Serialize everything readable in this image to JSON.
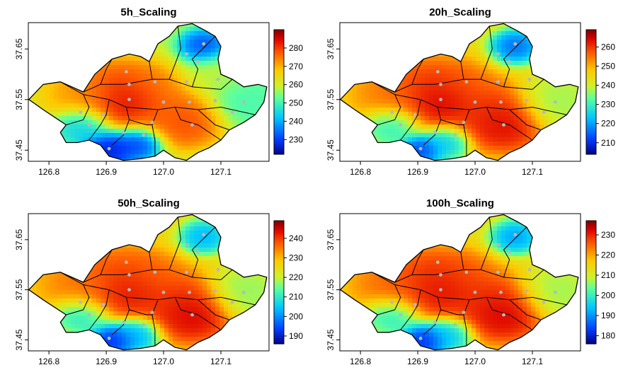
{
  "chart_data": [
    {
      "type": "heatmap",
      "title": "5h_Scaling",
      "x_ticks": [
        126.8,
        126.9,
        127.0,
        127.1
      ],
      "y_ticks": [
        37.45,
        37.55,
        37.65
      ],
      "xlim": [
        126.764,
        127.184
      ],
      "ylim": [
        37.428,
        37.702
      ],
      "colorbar": {
        "min": 222,
        "max": 290,
        "ticks": [
          230,
          240,
          250,
          260,
          270,
          280
        ]
      },
      "hotspots": [
        {
          "lon": 126.94,
          "lat": 37.545,
          "value": 289,
          "spread": 0.03
        },
        {
          "lon": 126.92,
          "lat": 37.57,
          "value": 284,
          "spread": 0.04
        },
        {
          "lon": 127.04,
          "lat": 37.505,
          "value": 282,
          "spread": 0.035
        },
        {
          "lon": 127.0,
          "lat": 37.53,
          "value": 278,
          "spread": 0.04
        },
        {
          "lon": 126.97,
          "lat": 37.58,
          "value": 276,
          "spread": 0.03
        },
        {
          "lon": 126.86,
          "lat": 37.56,
          "value": 274,
          "spread": 0.04
        },
        {
          "lon": 127.07,
          "lat": 37.655,
          "value": 228,
          "spread": 0.022
        },
        {
          "lon": 126.905,
          "lat": 37.45,
          "value": 222,
          "spread": 0.025
        },
        {
          "lon": 126.96,
          "lat": 37.465,
          "value": 226,
          "spread": 0.022
        },
        {
          "lon": 126.855,
          "lat": 37.5,
          "value": 240,
          "spread": 0.025
        },
        {
          "lon": 127.14,
          "lat": 37.545,
          "value": 250,
          "spread": 0.035
        },
        {
          "lon": 127.09,
          "lat": 37.6,
          "value": 258,
          "spread": 0.03
        }
      ],
      "base_value": 258
    },
    {
      "type": "heatmap",
      "title": "20h_Scaling",
      "x_ticks": [
        126.8,
        126.9,
        127.0,
        127.1
      ],
      "y_ticks": [
        37.45,
        37.55,
        37.65
      ],
      "xlim": [
        126.764,
        127.184
      ],
      "ylim": [
        37.428,
        37.702
      ],
      "colorbar": {
        "min": 204,
        "max": 269,
        "ticks": [
          210,
          220,
          230,
          240,
          250,
          260
        ]
      },
      "hotspots": [
        {
          "lon": 126.94,
          "lat": 37.545,
          "value": 268,
          "spread": 0.03
        },
        {
          "lon": 126.92,
          "lat": 37.57,
          "value": 264,
          "spread": 0.04
        },
        {
          "lon": 127.05,
          "lat": 37.5,
          "value": 267,
          "spread": 0.035
        },
        {
          "lon": 127.02,
          "lat": 37.53,
          "value": 262,
          "spread": 0.04
        },
        {
          "lon": 126.97,
          "lat": 37.58,
          "value": 258,
          "spread": 0.03
        },
        {
          "lon": 126.86,
          "lat": 37.56,
          "value": 256,
          "spread": 0.04
        },
        {
          "lon": 127.07,
          "lat": 37.655,
          "value": 212,
          "spread": 0.022
        },
        {
          "lon": 126.905,
          "lat": 37.45,
          "value": 208,
          "spread": 0.02
        },
        {
          "lon": 126.95,
          "lat": 37.465,
          "value": 222,
          "spread": 0.022
        },
        {
          "lon": 126.855,
          "lat": 37.5,
          "value": 226,
          "spread": 0.025
        },
        {
          "lon": 127.14,
          "lat": 37.545,
          "value": 236,
          "spread": 0.035
        }
      ],
      "base_value": 244
    },
    {
      "type": "heatmap",
      "title": "50h_Scaling",
      "x_ticks": [
        126.8,
        126.9,
        127.0,
        127.1
      ],
      "y_ticks": [
        37.45,
        37.55,
        37.65
      ],
      "xlim": [
        126.764,
        127.184
      ],
      "ylim": [
        37.428,
        37.702
      ],
      "colorbar": {
        "min": 186,
        "max": 249,
        "ticks": [
          190,
          200,
          210,
          220,
          230,
          240
        ]
      },
      "hotspots": [
        {
          "lon": 126.94,
          "lat": 37.545,
          "value": 246,
          "spread": 0.03
        },
        {
          "lon": 126.92,
          "lat": 37.57,
          "value": 242,
          "spread": 0.04
        },
        {
          "lon": 127.05,
          "lat": 37.5,
          "value": 248,
          "spread": 0.035
        },
        {
          "lon": 127.02,
          "lat": 37.53,
          "value": 242,
          "spread": 0.04
        },
        {
          "lon": 126.97,
          "lat": 37.58,
          "value": 238,
          "spread": 0.03
        },
        {
          "lon": 126.86,
          "lat": 37.56,
          "value": 236,
          "spread": 0.04
        },
        {
          "lon": 127.07,
          "lat": 37.655,
          "value": 200,
          "spread": 0.022
        },
        {
          "lon": 126.91,
          "lat": 37.448,
          "value": 187,
          "spread": 0.022
        },
        {
          "lon": 126.955,
          "lat": 37.46,
          "value": 200,
          "spread": 0.022
        },
        {
          "lon": 126.855,
          "lat": 37.5,
          "value": 206,
          "spread": 0.025
        },
        {
          "lon": 127.14,
          "lat": 37.545,
          "value": 216,
          "spread": 0.035
        }
      ],
      "base_value": 226
    },
    {
      "type": "heatmap",
      "title": "100h_Scaling",
      "x_ticks": [
        126.8,
        126.9,
        127.0,
        127.1
      ],
      "y_ticks": [
        37.45,
        37.55,
        37.65
      ],
      "xlim": [
        126.764,
        127.184
      ],
      "ylim": [
        37.428,
        37.702
      ],
      "colorbar": {
        "min": 176,
        "max": 237,
        "ticks": [
          180,
          190,
          200,
          210,
          220,
          230
        ]
      },
      "hotspots": [
        {
          "lon": 126.94,
          "lat": 37.545,
          "value": 234,
          "spread": 0.03
        },
        {
          "lon": 126.92,
          "lat": 37.57,
          "value": 232,
          "spread": 0.04
        },
        {
          "lon": 127.05,
          "lat": 37.5,
          "value": 236,
          "spread": 0.035
        },
        {
          "lon": 127.02,
          "lat": 37.53,
          "value": 231,
          "spread": 0.04
        },
        {
          "lon": 126.97,
          "lat": 37.58,
          "value": 228,
          "spread": 0.03
        },
        {
          "lon": 126.86,
          "lat": 37.56,
          "value": 226,
          "spread": 0.04
        },
        {
          "lon": 127.07,
          "lat": 37.655,
          "value": 188,
          "spread": 0.022
        },
        {
          "lon": 126.91,
          "lat": 37.448,
          "value": 177,
          "spread": 0.022
        },
        {
          "lon": 126.955,
          "lat": 37.46,
          "value": 192,
          "spread": 0.022
        },
        {
          "lon": 126.855,
          "lat": 37.5,
          "value": 196,
          "spread": 0.025
        },
        {
          "lon": 127.14,
          "lat": 37.545,
          "value": 206,
          "spread": 0.035
        }
      ],
      "base_value": 214
    }
  ],
  "stations": [
    [
      127.07,
      37.66
    ],
    [
      127.04,
      37.64
    ],
    [
      127.06,
      37.625
    ],
    [
      126.935,
      37.605
    ],
    [
      126.94,
      37.58
    ],
    [
      126.985,
      37.585
    ],
    [
      127.04,
      37.585
    ],
    [
      127.095,
      37.59
    ],
    [
      126.94,
      37.55
    ],
    [
      127.0,
      37.545
    ],
    [
      127.045,
      37.545
    ],
    [
      127.09,
      37.548
    ],
    [
      127.14,
      37.545
    ],
    [
      126.855,
      37.525
    ],
    [
      126.895,
      37.52
    ],
    [
      127.12,
      37.525
    ],
    [
      126.98,
      37.505
    ],
    [
      127.05,
      37.5
    ],
    [
      126.93,
      37.485
    ],
    [
      126.965,
      37.48
    ],
    [
      126.905,
      37.453
    ],
    [
      126.87,
      37.5
    ]
  ],
  "boundary": [
    [
      126.765,
      37.55
    ],
    [
      126.79,
      37.58
    ],
    [
      126.82,
      37.585
    ],
    [
      126.86,
      37.565
    ],
    [
      126.88,
      37.6
    ],
    [
      126.91,
      37.63
    ],
    [
      126.94,
      37.64
    ],
    [
      126.96,
      37.635
    ],
    [
      126.975,
      37.625
    ],
    [
      126.99,
      37.66
    ],
    [
      127.01,
      37.675
    ],
    [
      127.025,
      37.695
    ],
    [
      127.05,
      37.7
    ],
    [
      127.075,
      37.685
    ],
    [
      127.09,
      37.675
    ],
    [
      127.1,
      37.655
    ],
    [
      127.095,
      37.63
    ],
    [
      127.1,
      37.6
    ],
    [
      127.12,
      37.59
    ],
    [
      127.14,
      37.575
    ],
    [
      127.165,
      37.58
    ],
    [
      127.18,
      37.575
    ],
    [
      127.175,
      37.545
    ],
    [
      127.16,
      37.52
    ],
    [
      127.14,
      37.505
    ],
    [
      127.115,
      37.49
    ],
    [
      127.1,
      37.47
    ],
    [
      127.08,
      37.455
    ],
    [
      127.06,
      37.445
    ],
    [
      127.04,
      37.43
    ],
    [
      127.02,
      37.435
    ],
    [
      127.0,
      37.45
    ],
    [
      126.985,
      37.438
    ],
    [
      126.96,
      37.433
    ],
    [
      126.93,
      37.43
    ],
    [
      126.905,
      37.438
    ],
    [
      126.89,
      37.46
    ],
    [
      126.87,
      37.47
    ],
    [
      126.85,
      37.465
    ],
    [
      126.83,
      37.465
    ],
    [
      126.82,
      37.485
    ],
    [
      126.83,
      37.5
    ],
    [
      126.81,
      37.515
    ],
    [
      126.79,
      37.53
    ],
    [
      126.765,
      37.55
    ]
  ],
  "districts": [
    [
      [
        126.82,
        37.585
      ],
      [
        126.86,
        37.56
      ],
      [
        126.905,
        37.55
      ],
      [
        126.935,
        37.535
      ],
      [
        126.99,
        37.53
      ],
      [
        127.02,
        37.535
      ],
      [
        127.06,
        37.53
      ],
      [
        127.1,
        37.535
      ],
      [
        127.16,
        37.52
      ]
    ],
    [
      [
        126.86,
        37.565
      ],
      [
        126.89,
        37.58
      ],
      [
        126.93,
        37.58
      ],
      [
        126.98,
        37.59
      ],
      [
        127.01,
        37.59
      ],
      [
        127.05,
        37.575
      ],
      [
        127.1,
        37.57
      ]
    ],
    [
      [
        126.935,
        37.535
      ],
      [
        126.94,
        37.51
      ],
      [
        126.93,
        37.48
      ],
      [
        126.91,
        37.46
      ]
    ],
    [
      [
        126.99,
        37.53
      ],
      [
        126.98,
        37.5
      ],
      [
        126.985,
        37.47
      ],
      [
        126.985,
        37.438
      ]
    ],
    [
      [
        127.02,
        37.535
      ],
      [
        127.03,
        37.51
      ],
      [
        127.06,
        37.5
      ],
      [
        127.1,
        37.47
      ]
    ],
    [
      [
        127.01,
        37.59
      ],
      [
        127.02,
        37.62
      ],
      [
        127.03,
        37.65
      ],
      [
        127.025,
        37.695
      ]
    ],
    [
      [
        127.05,
        37.575
      ],
      [
        127.06,
        37.61
      ],
      [
        127.05,
        37.63
      ],
      [
        127.09,
        37.675
      ]
    ],
    [
      [
        126.98,
        37.59
      ],
      [
        126.975,
        37.625
      ]
    ],
    [
      [
        126.89,
        37.58
      ],
      [
        126.9,
        37.61
      ],
      [
        126.91,
        37.63
      ]
    ],
    [
      [
        126.86,
        37.56
      ],
      [
        126.87,
        37.535
      ],
      [
        126.86,
        37.51
      ],
      [
        126.83,
        37.5
      ]
    ],
    [
      [
        126.905,
        37.55
      ],
      [
        126.9,
        37.52
      ],
      [
        126.89,
        37.5
      ],
      [
        126.87,
        37.47
      ]
    ],
    [
      [
        127.1,
        37.57
      ],
      [
        127.12,
        37.59
      ]
    ],
    [
      [
        127.06,
        37.53
      ],
      [
        127.09,
        37.5
      ],
      [
        127.115,
        37.49
      ]
    ],
    [
      [
        126.94,
        37.51
      ],
      [
        126.97,
        37.5
      ],
      [
        126.98,
        37.5
      ]
    ]
  ]
}
